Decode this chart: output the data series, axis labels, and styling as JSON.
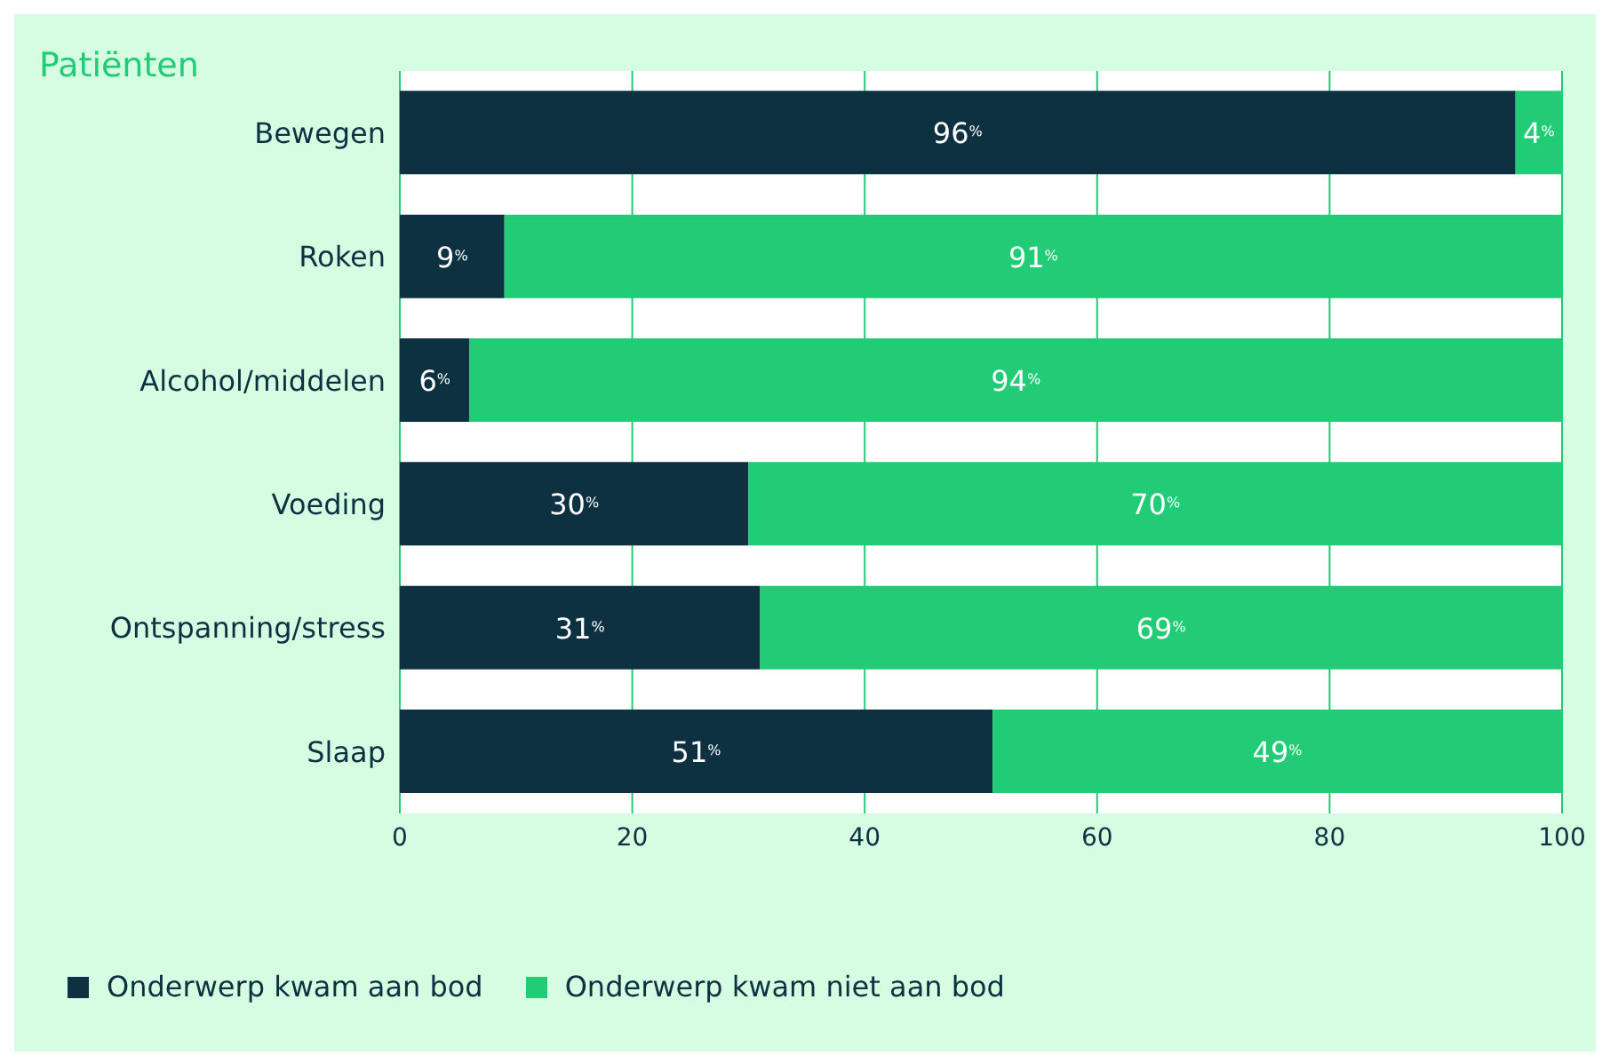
{
  "chart_data": {
    "type": "bar",
    "orientation": "horizontal",
    "stacked": true,
    "title": "Patiënten",
    "categories": [
      "Bewegen",
      "Roken",
      "Alcohol/middelen",
      "Voeding",
      "Ontspanning/stress",
      "Slaap"
    ],
    "series": [
      {
        "name": "Onderwerp kwam aan bod",
        "color": "#0e3142",
        "values": [
          96,
          9,
          6,
          30,
          31,
          51
        ],
        "value_labels": [
          "96$^{%}$",
          "9$^{%}$",
          "6$^{%}$",
          "30$^{%}$",
          "31$^{%}$",
          "51$^{%}$"
        ]
      },
      {
        "name": "Onderwerp kwam niet aan bod",
        "color": "#22cc77",
        "values": [
          4,
          91,
          94,
          70,
          69,
          49
        ],
        "value_labels": [
          "4$^{%}$",
          "91$^{%}$",
          "94$^{%}$",
          "70$^{%}$",
          "69$^{%}$",
          "49$^{%}$"
        ]
      }
    ],
    "xlim": [
      0,
      100
    ],
    "xticks": [
      0,
      20,
      40,
      60,
      80,
      100
    ],
    "grid": "x",
    "legend": "bottom left"
  }
}
